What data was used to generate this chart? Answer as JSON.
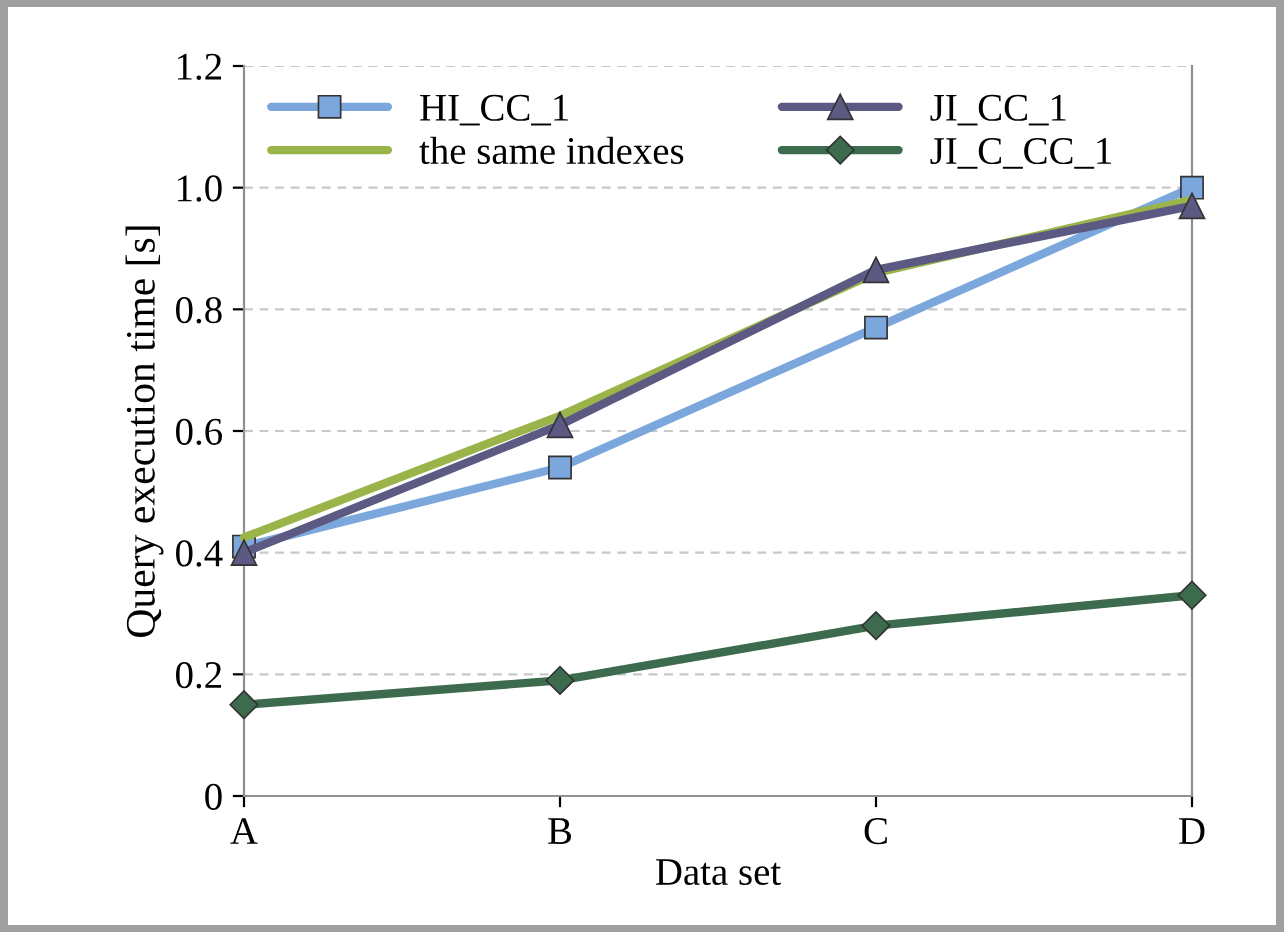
{
  "chart_data": {
    "type": "line",
    "xlabel": "Data set",
    "ylabel": "Query execution time [s]",
    "categories": [
      "A",
      "B",
      "C",
      "D"
    ],
    "series": [
      {
        "name": "HI_CC_1",
        "color": "#7ba7dc",
        "marker": "square",
        "values": [
          0.41,
          0.54,
          0.77,
          1.0
        ]
      },
      {
        "name": "the same indexes",
        "color": "#9bb449",
        "marker": "none",
        "values": [
          0.425,
          0.625,
          0.86,
          0.98
        ]
      },
      {
        "name": "JI_CC_1",
        "color": "#5c5a82",
        "marker": "triangle",
        "values": [
          0.4,
          0.61,
          0.865,
          0.97
        ]
      },
      {
        "name": "JI_C_CC_1",
        "color": "#3d6b4e",
        "marker": "diamond",
        "values": [
          0.15,
          0.19,
          0.28,
          0.33
        ]
      }
    ],
    "ylim": [
      0,
      1.2
    ],
    "yticks": [
      0,
      0.2,
      0.4,
      0.6,
      0.8,
      {
        "value": 1,
        "label": "1.0"
      },
      1.2
    ],
    "grid": "y",
    "legend": "top left",
    "line_style": "solid"
  }
}
